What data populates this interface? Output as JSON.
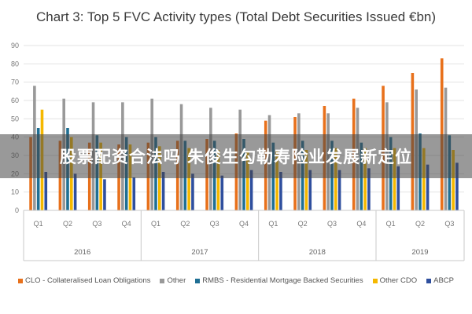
{
  "chart_data": {
    "type": "bar",
    "title": "Chart 3: Top 5 FVC Activity types (Total Debt Securities Issued €bn)",
    "categories": [
      "Q1",
      "Q2",
      "Q3",
      "Q4",
      "Q1",
      "Q2",
      "Q3",
      "Q4",
      "Q1",
      "Q2",
      "Q3",
      "Q4",
      "Q1",
      "Q2",
      "Q3"
    ],
    "groups": [
      {
        "label": "2016",
        "count": 4
      },
      {
        "label": "2017",
        "count": 4
      },
      {
        "label": "2018",
        "count": 4
      },
      {
        "label": "2019",
        "count": 3
      }
    ],
    "ylim": [
      0,
      90
    ],
    "yticks": [
      0,
      10,
      20,
      30,
      40,
      50,
      60,
      70,
      80,
      90
    ],
    "grid": true,
    "legend_position": "bottom",
    "series": [
      {
        "name": "CLO - Collateralised Loan Obligations",
        "color": "#e8711c",
        "values": [
          40,
          38,
          37,
          36,
          37,
          38,
          39,
          42,
          49,
          51,
          57,
          61,
          68,
          75,
          83
        ]
      },
      {
        "name": "Other",
        "color": "#999999",
        "values": [
          68,
          61,
          59,
          59,
          61,
          58,
          56,
          55,
          52,
          53,
          53,
          56,
          59,
          66,
          67
        ]
      },
      {
        "name": "RMBS - Residential Mortgage Backed Securities",
        "color": "#1f6f94",
        "values": [
          45,
          45,
          41,
          40,
          40,
          38,
          38,
          39,
          37,
          38,
          38,
          37,
          40,
          42,
          41
        ]
      },
      {
        "name": "Other CDO",
        "color": "#f5b800",
        "values": [
          55,
          40,
          37,
          36,
          35,
          34,
          33,
          32,
          33,
          33,
          34,
          34,
          34,
          34,
          33
        ]
      },
      {
        "name": "ABCP",
        "color": "#2f4f9e",
        "values": [
          21,
          20,
          17,
          18,
          21,
          20,
          19,
          22,
          21,
          22,
          22,
          23,
          24,
          25,
          26
        ]
      }
    ]
  },
  "overlay": {
    "text": "股票配资合法吗 朱俊生勾勒寿险业发展新定位"
  }
}
